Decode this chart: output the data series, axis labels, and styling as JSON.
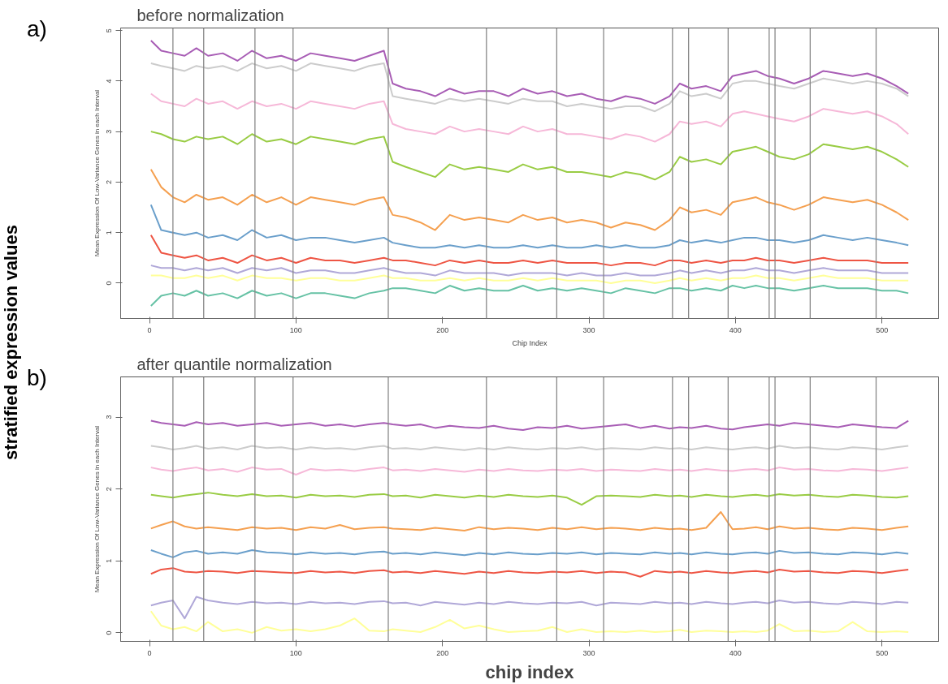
{
  "chart_data": [
    {
      "type": "line",
      "title": "before normalization",
      "xlabel": "Chip Index",
      "ylabel": "Mean Expression Of Low-Variance Genes in each Interval",
      "annotations": [
        "a)",
        "stratified expression values"
      ],
      "x": [
        1,
        8,
        16,
        24,
        32,
        40,
        50,
        60,
        70,
        80,
        90,
        100,
        110,
        120,
        130,
        140,
        150,
        160,
        166,
        175,
        185,
        195,
        205,
        215,
        225,
        235,
        245,
        255,
        265,
        275,
        285,
        295,
        305,
        315,
        325,
        335,
        345,
        355,
        362,
        370,
        380,
        390,
        398,
        406,
        414,
        422,
        430,
        440,
        450,
        460,
        470,
        480,
        490,
        500,
        510,
        518
      ],
      "xlim": [
        -19.7,
        538.7
      ],
      "xticks": [
        0,
        100,
        200,
        300,
        400,
        500
      ],
      "ylim": [
        -0.7,
        5.05
      ],
      "yticks": [
        0,
        1,
        2,
        3,
        4,
        5
      ],
      "series": [
        {
          "color": "#a85db5",
          "values": [
            4.8,
            4.6,
            4.55,
            4.5,
            4.65,
            4.5,
            4.55,
            4.4,
            4.6,
            4.45,
            4.5,
            4.4,
            4.55,
            4.5,
            4.45,
            4.4,
            4.5,
            4.6,
            3.95,
            3.85,
            3.8,
            3.7,
            3.85,
            3.75,
            3.8,
            3.8,
            3.7,
            3.85,
            3.75,
            3.8,
            3.7,
            3.75,
            3.65,
            3.6,
            3.7,
            3.65,
            3.55,
            3.7,
            3.95,
            3.85,
            3.9,
            3.8,
            4.1,
            4.15,
            4.2,
            4.1,
            4.05,
            3.95,
            4.05,
            4.2,
            4.15,
            4.1,
            4.15,
            4.05,
            3.9,
            3.75
          ]
        },
        {
          "color": "#cccccc",
          "values": [
            4.35,
            4.3,
            4.25,
            4.2,
            4.3,
            4.25,
            4.3,
            4.2,
            4.35,
            4.25,
            4.3,
            4.2,
            4.35,
            4.3,
            4.25,
            4.2,
            4.3,
            4.35,
            3.7,
            3.65,
            3.6,
            3.55,
            3.65,
            3.6,
            3.65,
            3.6,
            3.55,
            3.65,
            3.6,
            3.6,
            3.5,
            3.55,
            3.5,
            3.45,
            3.5,
            3.5,
            3.4,
            3.55,
            3.8,
            3.7,
            3.75,
            3.65,
            3.95,
            4.0,
            4.0,
            3.95,
            3.9,
            3.85,
            3.95,
            4.05,
            4.0,
            3.95,
            4.0,
            3.95,
            3.85,
            3.7
          ]
        },
        {
          "color": "#f6b8d8",
          "values": [
            3.75,
            3.6,
            3.55,
            3.5,
            3.65,
            3.55,
            3.6,
            3.45,
            3.6,
            3.5,
            3.55,
            3.45,
            3.6,
            3.55,
            3.5,
            3.45,
            3.55,
            3.6,
            3.15,
            3.05,
            3.0,
            2.95,
            3.1,
            3.0,
            3.05,
            3.0,
            2.95,
            3.1,
            3.0,
            3.05,
            2.95,
            2.95,
            2.9,
            2.85,
            2.95,
            2.9,
            2.8,
            2.95,
            3.2,
            3.15,
            3.2,
            3.1,
            3.35,
            3.4,
            3.35,
            3.3,
            3.25,
            3.2,
            3.3,
            3.45,
            3.4,
            3.35,
            3.4,
            3.3,
            3.15,
            2.95
          ]
        },
        {
          "color": "#99cc44",
          "values": [
            3.0,
            2.95,
            2.85,
            2.8,
            2.9,
            2.85,
            2.9,
            2.75,
            2.95,
            2.8,
            2.85,
            2.75,
            2.9,
            2.85,
            2.8,
            2.75,
            2.85,
            2.9,
            2.4,
            2.3,
            2.2,
            2.1,
            2.35,
            2.25,
            2.3,
            2.25,
            2.2,
            2.35,
            2.25,
            2.3,
            2.2,
            2.2,
            2.15,
            2.1,
            2.2,
            2.15,
            2.05,
            2.2,
            2.5,
            2.4,
            2.45,
            2.35,
            2.6,
            2.65,
            2.7,
            2.6,
            2.5,
            2.45,
            2.55,
            2.75,
            2.7,
            2.65,
            2.7,
            2.6,
            2.45,
            2.3
          ]
        },
        {
          "color": "#f5a050",
          "values": [
            2.25,
            1.9,
            1.7,
            1.6,
            1.75,
            1.65,
            1.7,
            1.55,
            1.75,
            1.6,
            1.7,
            1.55,
            1.7,
            1.65,
            1.6,
            1.55,
            1.65,
            1.7,
            1.35,
            1.3,
            1.2,
            1.05,
            1.35,
            1.25,
            1.3,
            1.25,
            1.2,
            1.35,
            1.25,
            1.3,
            1.2,
            1.25,
            1.2,
            1.1,
            1.2,
            1.15,
            1.05,
            1.25,
            1.5,
            1.4,
            1.45,
            1.35,
            1.6,
            1.65,
            1.7,
            1.6,
            1.55,
            1.45,
            1.55,
            1.7,
            1.65,
            1.6,
            1.65,
            1.55,
            1.4,
            1.25
          ]
        },
        {
          "color": "#6a9fcb",
          "values": [
            1.55,
            1.05,
            1.0,
            0.95,
            1.0,
            0.9,
            0.95,
            0.85,
            1.05,
            0.9,
            0.95,
            0.85,
            0.9,
            0.9,
            0.85,
            0.8,
            0.85,
            0.9,
            0.8,
            0.75,
            0.7,
            0.7,
            0.75,
            0.7,
            0.75,
            0.7,
            0.7,
            0.75,
            0.7,
            0.75,
            0.7,
            0.7,
            0.75,
            0.7,
            0.75,
            0.7,
            0.7,
            0.75,
            0.85,
            0.8,
            0.85,
            0.8,
            0.85,
            0.9,
            0.9,
            0.85,
            0.85,
            0.8,
            0.85,
            0.95,
            0.9,
            0.85,
            0.9,
            0.85,
            0.8,
            0.75
          ]
        },
        {
          "color": "#ee5544",
          "values": [
            0.95,
            0.6,
            0.55,
            0.5,
            0.55,
            0.45,
            0.5,
            0.4,
            0.55,
            0.45,
            0.5,
            0.4,
            0.5,
            0.45,
            0.45,
            0.4,
            0.45,
            0.5,
            0.45,
            0.45,
            0.4,
            0.35,
            0.45,
            0.4,
            0.45,
            0.4,
            0.4,
            0.45,
            0.4,
            0.45,
            0.4,
            0.4,
            0.4,
            0.35,
            0.4,
            0.4,
            0.35,
            0.45,
            0.45,
            0.4,
            0.45,
            0.4,
            0.45,
            0.45,
            0.5,
            0.45,
            0.45,
            0.4,
            0.45,
            0.5,
            0.45,
            0.45,
            0.45,
            0.4,
            0.4,
            0.4
          ]
        },
        {
          "color": "#b0a8d8",
          "values": [
            0.35,
            0.3,
            0.3,
            0.25,
            0.3,
            0.25,
            0.3,
            0.2,
            0.3,
            0.25,
            0.3,
            0.2,
            0.25,
            0.25,
            0.2,
            0.2,
            0.25,
            0.3,
            0.25,
            0.2,
            0.2,
            0.15,
            0.25,
            0.2,
            0.2,
            0.2,
            0.15,
            0.2,
            0.2,
            0.2,
            0.15,
            0.2,
            0.15,
            0.15,
            0.2,
            0.15,
            0.15,
            0.2,
            0.25,
            0.2,
            0.25,
            0.2,
            0.25,
            0.25,
            0.3,
            0.25,
            0.25,
            0.2,
            0.25,
            0.3,
            0.25,
            0.25,
            0.25,
            0.2,
            0.2,
            0.2
          ]
        },
        {
          "color": "#ffff99",
          "values": [
            0.15,
            0.15,
            0.1,
            0.1,
            0.15,
            0.1,
            0.15,
            0.05,
            0.15,
            0.1,
            0.1,
            0.05,
            0.1,
            0.1,
            0.05,
            0.05,
            0.1,
            0.15,
            0.1,
            0.1,
            0.05,
            0.05,
            0.1,
            0.05,
            0.1,
            0.05,
            0.05,
            0.1,
            0.05,
            0.1,
            0.05,
            0.05,
            0.05,
            0.0,
            0.05,
            0.05,
            0.0,
            0.05,
            0.1,
            0.05,
            0.1,
            0.05,
            0.1,
            0.1,
            0.15,
            0.1,
            0.1,
            0.05,
            0.1,
            0.15,
            0.1,
            0.1,
            0.1,
            0.05,
            0.05,
            0.05
          ]
        },
        {
          "color": "#66c2a5",
          "values": [
            -0.45,
            -0.25,
            -0.2,
            -0.25,
            -0.15,
            -0.25,
            -0.2,
            -0.3,
            -0.15,
            -0.25,
            -0.2,
            -0.3,
            -0.2,
            -0.2,
            -0.25,
            -0.3,
            -0.2,
            -0.15,
            -0.1,
            -0.1,
            -0.15,
            -0.2,
            -0.05,
            -0.15,
            -0.1,
            -0.15,
            -0.15,
            -0.05,
            -0.15,
            -0.1,
            -0.15,
            -0.1,
            -0.15,
            -0.2,
            -0.1,
            -0.15,
            -0.2,
            -0.1,
            -0.1,
            -0.15,
            -0.1,
            -0.15,
            -0.05,
            -0.1,
            -0.05,
            -0.1,
            -0.1,
            -0.15,
            -0.1,
            -0.05,
            -0.1,
            -0.1,
            -0.1,
            -0.15,
            -0.15,
            -0.2
          ]
        }
      ],
      "ref_lines": [
        {
          "axis": "x",
          "value": 16,
          "color": "#888888"
        },
        {
          "axis": "x",
          "value": 37,
          "color": "#888888"
        },
        {
          "axis": "x",
          "value": 72,
          "color": "#888888"
        },
        {
          "axis": "x",
          "value": 98,
          "color": "#888888"
        },
        {
          "axis": "x",
          "value": 163,
          "color": "#888888"
        },
        {
          "axis": "x",
          "value": 230,
          "color": "#888888"
        },
        {
          "axis": "x",
          "value": 278,
          "color": "#888888"
        },
        {
          "axis": "x",
          "value": 310,
          "color": "#888888"
        },
        {
          "axis": "x",
          "value": 357,
          "color": "#888888"
        },
        {
          "axis": "x",
          "value": 368,
          "color": "#888888"
        },
        {
          "axis": "x",
          "value": 395,
          "color": "#888888"
        },
        {
          "axis": "x",
          "value": 423,
          "color": "#888888"
        },
        {
          "axis": "x",
          "value": 427,
          "color": "#888888"
        },
        {
          "axis": "x",
          "value": 451,
          "color": "#888888"
        },
        {
          "axis": "x",
          "value": 496,
          "color": "#888888"
        }
      ]
    },
    {
      "type": "line",
      "title": "after quantile normalization",
      "xlabel": "chip index",
      "ylabel": "Mean Expression Of Low-Variance Genes in each Interval",
      "annotations": [
        "b)"
      ],
      "x": [
        1,
        8,
        16,
        24,
        32,
        40,
        50,
        60,
        70,
        80,
        90,
        100,
        110,
        120,
        130,
        140,
        150,
        160,
        166,
        175,
        185,
        195,
        205,
        215,
        225,
        235,
        245,
        255,
        265,
        275,
        285,
        295,
        305,
        315,
        325,
        335,
        345,
        355,
        362,
        370,
        380,
        390,
        398,
        406,
        414,
        422,
        430,
        440,
        450,
        460,
        470,
        480,
        490,
        500,
        510,
        518
      ],
      "xlim": [
        -19.7,
        538.7
      ],
      "xticks": [
        0,
        100,
        200,
        300,
        400,
        500
      ],
      "ylim": [
        -0.12,
        3.56
      ],
      "yticks": [
        0,
        1,
        2,
        3
      ],
      "series": [
        {
          "color": "#a85db5",
          "values": [
            2.95,
            2.92,
            2.9,
            2.88,
            2.93,
            2.9,
            2.92,
            2.88,
            2.9,
            2.92,
            2.88,
            2.9,
            2.92,
            2.88,
            2.9,
            2.87,
            2.9,
            2.92,
            2.9,
            2.88,
            2.9,
            2.85,
            2.88,
            2.86,
            2.85,
            2.88,
            2.84,
            2.82,
            2.86,
            2.85,
            2.88,
            2.84,
            2.86,
            2.88,
            2.9,
            2.85,
            2.88,
            2.84,
            2.86,
            2.85,
            2.88,
            2.84,
            2.83,
            2.86,
            2.88,
            2.9,
            2.88,
            2.92,
            2.9,
            2.88,
            2.86,
            2.9,
            2.88,
            2.86,
            2.85,
            2.95
          ]
        },
        {
          "color": "#cccccc",
          "values": [
            2.6,
            2.58,
            2.55,
            2.57,
            2.6,
            2.56,
            2.58,
            2.55,
            2.6,
            2.57,
            2.58,
            2.55,
            2.58,
            2.56,
            2.57,
            2.55,
            2.58,
            2.6,
            2.56,
            2.57,
            2.55,
            2.58,
            2.56,
            2.54,
            2.57,
            2.55,
            2.58,
            2.56,
            2.55,
            2.57,
            2.56,
            2.58,
            2.55,
            2.57,
            2.56,
            2.55,
            2.58,
            2.56,
            2.57,
            2.55,
            2.58,
            2.56,
            2.55,
            2.57,
            2.58,
            2.56,
            2.6,
            2.57,
            2.58,
            2.56,
            2.55,
            2.58,
            2.57,
            2.55,
            2.58,
            2.6
          ]
        },
        {
          "color": "#f6b8d8",
          "values": [
            2.3,
            2.27,
            2.25,
            2.28,
            2.3,
            2.26,
            2.28,
            2.24,
            2.3,
            2.27,
            2.28,
            2.2,
            2.28,
            2.26,
            2.27,
            2.25,
            2.28,
            2.3,
            2.26,
            2.27,
            2.25,
            2.28,
            2.26,
            2.24,
            2.27,
            2.25,
            2.28,
            2.26,
            2.25,
            2.27,
            2.26,
            2.28,
            2.25,
            2.27,
            2.26,
            2.25,
            2.28,
            2.26,
            2.27,
            2.25,
            2.28,
            2.26,
            2.25,
            2.27,
            2.28,
            2.26,
            2.3,
            2.27,
            2.28,
            2.26,
            2.25,
            2.28,
            2.27,
            2.25,
            2.28,
            2.3
          ]
        },
        {
          "color": "#99cc44",
          "values": [
            1.92,
            1.9,
            1.88,
            1.91,
            1.93,
            1.95,
            1.92,
            1.9,
            1.93,
            1.9,
            1.91,
            1.88,
            1.92,
            1.9,
            1.91,
            1.89,
            1.92,
            1.93,
            1.9,
            1.91,
            1.88,
            1.92,
            1.9,
            1.88,
            1.91,
            1.89,
            1.92,
            1.9,
            1.89,
            1.91,
            1.88,
            1.78,
            1.9,
            1.91,
            1.9,
            1.89,
            1.92,
            1.9,
            1.91,
            1.89,
            1.92,
            1.9,
            1.89,
            1.91,
            1.92,
            1.9,
            1.93,
            1.91,
            1.92,
            1.9,
            1.89,
            1.92,
            1.91,
            1.89,
            1.88,
            1.9
          ]
        },
        {
          "color": "#f5a050",
          "values": [
            1.45,
            1.5,
            1.55,
            1.48,
            1.45,
            1.47,
            1.45,
            1.43,
            1.47,
            1.45,
            1.46,
            1.43,
            1.47,
            1.45,
            1.5,
            1.44,
            1.46,
            1.47,
            1.45,
            1.44,
            1.43,
            1.46,
            1.44,
            1.42,
            1.47,
            1.44,
            1.46,
            1.45,
            1.43,
            1.46,
            1.44,
            1.47,
            1.44,
            1.46,
            1.45,
            1.43,
            1.46,
            1.44,
            1.45,
            1.43,
            1.46,
            1.68,
            1.44,
            1.45,
            1.47,
            1.44,
            1.48,
            1.45,
            1.46,
            1.44,
            1.43,
            1.46,
            1.45,
            1.43,
            1.46,
            1.48
          ]
        },
        {
          "color": "#6a9fcb",
          "values": [
            1.15,
            1.1,
            1.05,
            1.12,
            1.14,
            1.1,
            1.12,
            1.1,
            1.15,
            1.12,
            1.11,
            1.09,
            1.12,
            1.1,
            1.11,
            1.09,
            1.12,
            1.13,
            1.1,
            1.11,
            1.09,
            1.12,
            1.1,
            1.08,
            1.11,
            1.09,
            1.12,
            1.1,
            1.09,
            1.11,
            1.1,
            1.12,
            1.09,
            1.11,
            1.1,
            1.09,
            1.12,
            1.1,
            1.11,
            1.09,
            1.12,
            1.1,
            1.09,
            1.11,
            1.12,
            1.1,
            1.14,
            1.11,
            1.12,
            1.1,
            1.09,
            1.12,
            1.11,
            1.09,
            1.12,
            1.1
          ]
        },
        {
          "color": "#ee5544",
          "values": [
            0.82,
            0.88,
            0.9,
            0.85,
            0.84,
            0.86,
            0.85,
            0.83,
            0.86,
            0.85,
            0.84,
            0.83,
            0.86,
            0.84,
            0.85,
            0.83,
            0.86,
            0.87,
            0.84,
            0.85,
            0.83,
            0.86,
            0.84,
            0.82,
            0.85,
            0.83,
            0.86,
            0.84,
            0.83,
            0.85,
            0.84,
            0.86,
            0.83,
            0.85,
            0.84,
            0.78,
            0.86,
            0.84,
            0.85,
            0.83,
            0.86,
            0.84,
            0.83,
            0.85,
            0.86,
            0.84,
            0.88,
            0.85,
            0.86,
            0.84,
            0.83,
            0.86,
            0.85,
            0.83,
            0.86,
            0.88
          ]
        },
        {
          "color": "#b0a8d8",
          "values": [
            0.38,
            0.42,
            0.45,
            0.2,
            0.5,
            0.45,
            0.42,
            0.4,
            0.43,
            0.41,
            0.42,
            0.4,
            0.43,
            0.41,
            0.42,
            0.4,
            0.43,
            0.44,
            0.41,
            0.42,
            0.38,
            0.43,
            0.41,
            0.39,
            0.42,
            0.4,
            0.43,
            0.41,
            0.4,
            0.42,
            0.41,
            0.43,
            0.38,
            0.42,
            0.41,
            0.4,
            0.43,
            0.41,
            0.42,
            0.4,
            0.43,
            0.41,
            0.4,
            0.42,
            0.43,
            0.41,
            0.45,
            0.42,
            0.43,
            0.41,
            0.4,
            0.43,
            0.42,
            0.4,
            0.43,
            0.42
          ]
        },
        {
          "color": "#ffff99",
          "values": [
            0.3,
            0.1,
            0.05,
            0.08,
            0.02,
            0.15,
            0.02,
            0.05,
            0.0,
            0.08,
            0.03,
            0.05,
            0.02,
            0.05,
            0.1,
            0.2,
            0.03,
            0.02,
            0.05,
            0.03,
            0.01,
            0.08,
            0.18,
            0.06,
            0.1,
            0.05,
            0.01,
            0.02,
            0.03,
            0.08,
            0.01,
            0.05,
            0.01,
            0.02,
            0.01,
            0.03,
            0.01,
            0.02,
            0.04,
            0.01,
            0.03,
            0.02,
            0.01,
            0.02,
            0.01,
            0.03,
            0.12,
            0.02,
            0.03,
            0.01,
            0.02,
            0.15,
            0.02,
            0.01,
            0.02,
            0.01
          ]
        }
      ],
      "ref_lines": [
        {
          "axis": "x",
          "value": 16,
          "color": "#888888"
        },
        {
          "axis": "x",
          "value": 37,
          "color": "#888888"
        },
        {
          "axis": "x",
          "value": 72,
          "color": "#888888"
        },
        {
          "axis": "x",
          "value": 98,
          "color": "#888888"
        },
        {
          "axis": "x",
          "value": 163,
          "color": "#888888"
        },
        {
          "axis": "x",
          "value": 230,
          "color": "#888888"
        },
        {
          "axis": "x",
          "value": 278,
          "color": "#888888"
        },
        {
          "axis": "x",
          "value": 310,
          "color": "#888888"
        },
        {
          "axis": "x",
          "value": 357,
          "color": "#888888"
        },
        {
          "axis": "x",
          "value": 368,
          "color": "#888888"
        },
        {
          "axis": "x",
          "value": 395,
          "color": "#888888"
        },
        {
          "axis": "x",
          "value": 423,
          "color": "#888888"
        },
        {
          "axis": "x",
          "value": 427,
          "color": "#888888"
        },
        {
          "axis": "x",
          "value": 451,
          "color": "#888888"
        },
        {
          "axis": "x",
          "value": 496,
          "color": "#888888"
        }
      ]
    }
  ]
}
